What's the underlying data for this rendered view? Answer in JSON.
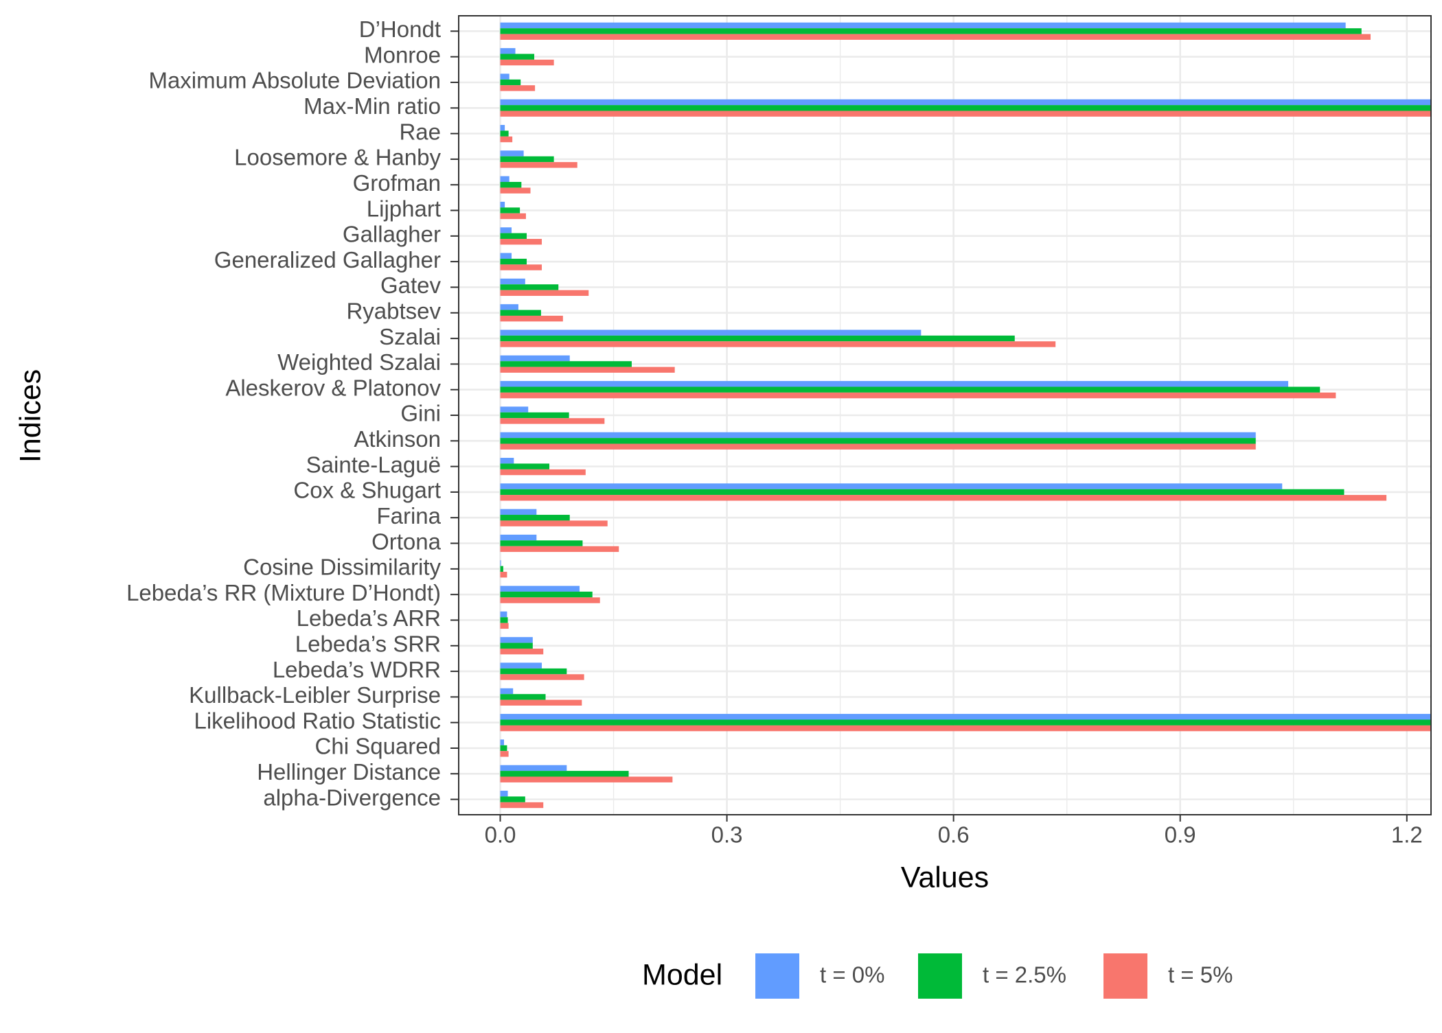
{
  "chart_data": {
    "type": "bar",
    "orientation": "horizontal",
    "xlabel": "Values",
    "ylabel": "Indices",
    "categories": [
      "D’Hondt",
      "Monroe",
      "Maximum Absolute Deviation",
      "Max-Min ratio",
      "Rae",
      "Loosemore & Hanby",
      "Grofman",
      "Lijphart",
      "Gallagher",
      "Generalized Gallagher",
      "Gatev",
      "Ryabtsev",
      "Szalai",
      "Weighted Szalai",
      "Aleskerov & Platonov",
      "Gini",
      "Atkinson",
      "Sainte-Laguë",
      "Cox & Shugart",
      "Farina",
      "Ortona",
      "Cosine Dissimilarity",
      "Lebeda’s RR (Mixture D’Hondt)",
      "Lebeda’s ARR",
      "Lebeda’s SRR",
      "Lebeda’s WDRR",
      "Kullback-Leibler Surprise",
      "Likelihood Ratio Statistic",
      "Chi Squared",
      "Hellinger Distance",
      "alpha-Divergence"
    ],
    "series": [
      {
        "name": "t = 0%",
        "color": "#619CFF",
        "values": [
          1.119,
          0.02,
          0.012,
          1.25,
          0.006,
          0.031,
          0.012,
          0.006,
          0.015,
          0.015,
          0.033,
          0.024,
          0.557,
          0.092,
          1.043,
          0.037,
          1.0,
          0.018,
          1.035,
          0.048,
          0.048,
          0.001,
          0.105,
          0.009,
          0.043,
          0.055,
          0.017,
          1.25,
          0.005,
          0.088,
          0.01
        ]
      },
      {
        "name": "t = 2.5%",
        "color": "#00BA38",
        "values": [
          1.14,
          0.045,
          0.027,
          1.25,
          0.011,
          0.071,
          0.028,
          0.026,
          0.035,
          0.035,
          0.077,
          0.054,
          0.681,
          0.174,
          1.085,
          0.091,
          1.0,
          0.065,
          1.117,
          0.092,
          0.109,
          0.004,
          0.122,
          0.01,
          0.043,
          0.088,
          0.06,
          1.25,
          0.009,
          0.17,
          0.033
        ]
      },
      {
        "name": "t = 5%",
        "color": "#F8766D",
        "values": [
          1.152,
          0.071,
          0.046,
          1.25,
          0.016,
          0.102,
          0.04,
          0.034,
          0.055,
          0.055,
          0.117,
          0.083,
          0.735,
          0.231,
          1.106,
          0.138,
          1.0,
          0.113,
          1.173,
          0.142,
          0.157,
          0.009,
          0.132,
          0.011,
          0.057,
          0.111,
          0.108,
          1.25,
          0.011,
          0.228,
          0.057
        ]
      }
    ],
    "xlim": [
      -0.055,
      1.232
    ],
    "xticks": [
      {
        "value": 0,
        "label": "0.0"
      },
      0.3,
      0.6,
      0.9,
      1.2
    ],
    "xminorticks": [
      0.15,
      0.45,
      0.75,
      1.05
    ],
    "grid": true,
    "legend_title": "Model",
    "legend_position": "bottom"
  }
}
